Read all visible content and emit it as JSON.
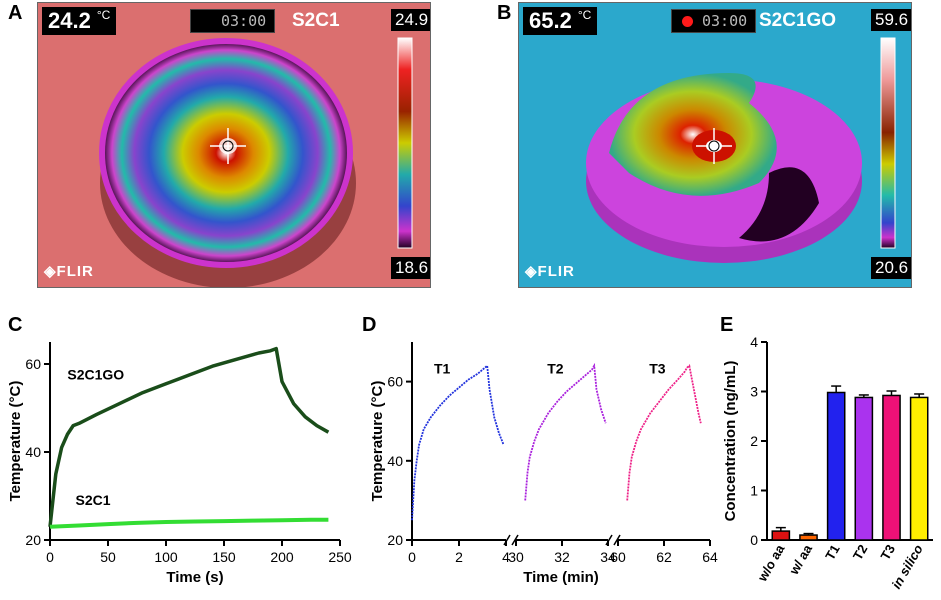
{
  "panels": {
    "A": {
      "letter": "A",
      "temp_readout": "24.2",
      "temp_unit": "°C",
      "timer": "03:00",
      "recording": false,
      "sample": "S2C1",
      "scale_max": "24.9",
      "scale_min": "18.6",
      "logo": "FLIR"
    },
    "B": {
      "letter": "B",
      "temp_readout": "65.2",
      "temp_unit": "°C",
      "timer": "03:00",
      "recording": true,
      "sample": "S2C1GO",
      "scale_max": "59.6",
      "scale_min": "20.6",
      "logo": "FLIR"
    },
    "C": {
      "letter": "C"
    },
    "D": {
      "letter": "D"
    },
    "E": {
      "letter": "E"
    }
  },
  "colors": {
    "s2c1go": "#1a4d1a",
    "s2c1": "#33dd33",
    "t1": "#2233dd",
    "t2": "#aa22dd",
    "t3": "#ee2288",
    "bar_woaa": "#dd1111",
    "bar_waa": "#ff6600",
    "bar_T1": "#2222ee",
    "bar_T2": "#aa33ee",
    "bar_T3": "#ee1177",
    "bar_insilico": "#ffee00"
  },
  "chart_data": [
    {
      "id": "C",
      "type": "line",
      "xlabel": "Time (s)",
      "ylabel": "Temperature (°C)",
      "xlim": [
        0,
        250
      ],
      "ylim": [
        20,
        65
      ],
      "xticks": [
        "0",
        "50",
        "100",
        "150",
        "200",
        "250"
      ],
      "yticks": [
        "20",
        "40",
        "60"
      ],
      "series": [
        {
          "name": "S2C1GO",
          "x": [
            0,
            5,
            10,
            15,
            20,
            25,
            40,
            60,
            80,
            100,
            120,
            140,
            160,
            180,
            190,
            195,
            200,
            210,
            220,
            230,
            240
          ],
          "y": [
            23,
            35,
            41,
            44,
            46,
            46.5,
            48.5,
            51,
            53.5,
            55.5,
            57.5,
            59.5,
            61,
            62.5,
            63,
            63.5,
            56,
            51,
            48,
            46,
            44.5
          ]
        },
        {
          "name": "S2C1",
          "x": [
            0,
            25,
            50,
            75,
            100,
            125,
            150,
            175,
            200,
            225,
            240
          ],
          "y": [
            23,
            23.3,
            23.6,
            23.9,
            24.1,
            24.2,
            24.3,
            24.4,
            24.5,
            24.6,
            24.6
          ]
        }
      ]
    },
    {
      "id": "D",
      "type": "line",
      "xlabel": "Time (min)",
      "ylabel": "Temperature (°C)",
      "ylim": [
        20,
        70
      ],
      "yticks": [
        "20",
        "40",
        "60"
      ],
      "segments": [
        {
          "xlim": [
            0,
            4
          ],
          "xticks": [
            "0",
            "2",
            "4"
          ]
        },
        {
          "xlim": [
            30,
            34
          ],
          "xticks": [
            "30",
            "32",
            "34"
          ]
        },
        {
          "xlim": [
            60,
            64
          ],
          "xticks": [
            "60",
            "62",
            "64"
          ]
        }
      ],
      "series": [
        {
          "name": "T1",
          "x": [
            0,
            0.1,
            0.2,
            0.3,
            0.5,
            0.8,
            1.2,
            1.6,
            2.0,
            2.4,
            2.8,
            3.1,
            3.2,
            3.3,
            3.5,
            3.7,
            3.9
          ],
          "y": [
            25,
            35,
            40,
            44,
            48,
            51,
            54,
            56.5,
            58.5,
            60.5,
            62,
            63.5,
            64,
            58,
            51,
            47,
            44
          ]
        },
        {
          "name": "T2",
          "x": [
            30.4,
            30.5,
            30.6,
            30.8,
            31.0,
            31.4,
            31.8,
            32.2,
            32.6,
            33.0,
            33.3,
            33.4,
            33.5,
            33.7,
            33.9
          ],
          "y": [
            30,
            37,
            41,
            45,
            48,
            52,
            55,
            57.5,
            59.5,
            61.5,
            63,
            64,
            58,
            53,
            49.5
          ]
        },
        {
          "name": "T3",
          "x": [
            60.4,
            60.5,
            60.6,
            60.8,
            61.0,
            61.4,
            61.8,
            62.2,
            62.6,
            62.9,
            63.0,
            63.1,
            63.3,
            63.5,
            63.6
          ],
          "y": [
            30,
            37,
            41,
            45,
            48,
            52,
            55,
            58,
            60.5,
            62.5,
            63.5,
            64,
            58,
            52,
            49.5
          ]
        }
      ]
    },
    {
      "id": "E",
      "type": "bar",
      "ylabel": "Concentration (ng/mL)",
      "ylim": [
        0,
        4
      ],
      "yticks": [
        "0",
        "1",
        "2",
        "3",
        "4"
      ],
      "categories": [
        "w/o aa",
        "w/ aa",
        "T1",
        "T2",
        "T3",
        "in silico"
      ],
      "values": [
        0.18,
        0.1,
        2.98,
        2.88,
        2.92,
        2.88
      ],
      "errors": [
        0.07,
        0.03,
        0.13,
        0.05,
        0.09,
        0.07
      ]
    }
  ]
}
